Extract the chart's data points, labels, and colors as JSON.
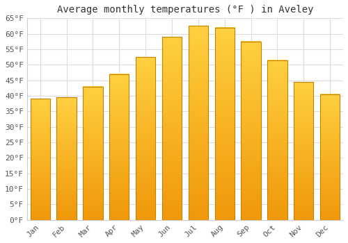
{
  "title": "Average monthly temperatures (°F ) in Aveley",
  "months": [
    "Jan",
    "Feb",
    "Mar",
    "Apr",
    "May",
    "Jun",
    "Jul",
    "Aug",
    "Sep",
    "Oct",
    "Nov",
    "Dec"
  ],
  "values": [
    39,
    39.5,
    43,
    47,
    52.5,
    59,
    62.5,
    62,
    57.5,
    51.5,
    44.5,
    40.5
  ],
  "bar_color_top": "#FFD040",
  "bar_color_bottom": "#F0980A",
  "bar_edge_color": "#C88000",
  "ylim": [
    0,
    65
  ],
  "yticks": [
    0,
    5,
    10,
    15,
    20,
    25,
    30,
    35,
    40,
    45,
    50,
    55,
    60,
    65
  ],
  "ytick_labels": [
    "0°F",
    "5°F",
    "10°F",
    "15°F",
    "20°F",
    "25°F",
    "30°F",
    "35°F",
    "40°F",
    "45°F",
    "50°F",
    "55°F",
    "60°F",
    "65°F"
  ],
  "background_color": "#ffffff",
  "grid_color": "#dddddd",
  "title_fontsize": 10,
  "tick_fontsize": 8,
  "font_family": "monospace",
  "bar_width": 0.75
}
